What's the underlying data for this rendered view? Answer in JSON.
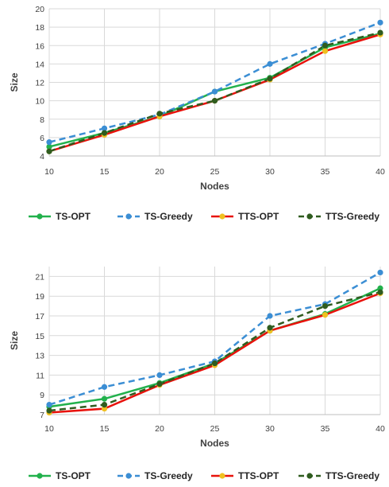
{
  "colors": {
    "ts_opt": "#22b14c",
    "ts_greedy": "#3b8ed4",
    "tts_opt": "#e8120c",
    "tts_greedy": "#2f5c1f",
    "tts_opt_marker": "#f0c020",
    "grid": "#d9d9d9",
    "axis": "#bfbfbf"
  },
  "chart_data": [
    {
      "type": "line",
      "title": "",
      "xlabel": "Nodes",
      "ylabel": "Size",
      "x": [
        10,
        15,
        20,
        25,
        30,
        35,
        40
      ],
      "xlim": [
        10,
        40
      ],
      "ylim": [
        4,
        20
      ],
      "yticks": [
        4,
        6,
        8,
        10,
        12,
        14,
        16,
        18,
        20
      ],
      "grid": "vertical and horizontal",
      "legend_position": "bottom",
      "series": [
        {
          "name": "TS-OPT",
          "style": "solid",
          "values": [
            5.0,
            6.5,
            8.3,
            11.0,
            12.5,
            15.8,
            17.3
          ]
        },
        {
          "name": "TS-Greedy",
          "style": "dashed",
          "values": [
            5.5,
            7.0,
            8.5,
            11.0,
            14.0,
            16.2,
            18.5
          ]
        },
        {
          "name": "TTS-OPT",
          "style": "solid",
          "values": [
            4.5,
            6.3,
            8.3,
            10.0,
            12.3,
            15.4,
            17.2
          ]
        },
        {
          "name": "TTS-Greedy",
          "style": "dashed",
          "values": [
            4.5,
            6.5,
            8.6,
            10.0,
            12.4,
            16.0,
            17.4
          ]
        }
      ]
    },
    {
      "type": "line",
      "title": "",
      "xlabel": "Nodes",
      "ylabel": "Size",
      "x": [
        10,
        15,
        20,
        25,
        30,
        35,
        40
      ],
      "xlim": [
        10,
        40
      ],
      "ylim": [
        7,
        22
      ],
      "yticks": [
        7,
        9,
        11,
        13,
        15,
        17,
        19,
        21
      ],
      "grid": "vertical and horizontal",
      "legend_position": "bottom",
      "series": [
        {
          "name": "TS-OPT",
          "style": "solid",
          "values": [
            7.8,
            8.6,
            10.2,
            12.2,
            15.5,
            17.2,
            19.8
          ]
        },
        {
          "name": "TS-Greedy",
          "style": "dashed",
          "values": [
            8.0,
            9.8,
            11.0,
            12.4,
            17.0,
            18.2,
            21.4
          ]
        },
        {
          "name": "TTS-OPT",
          "style": "solid",
          "values": [
            7.2,
            7.6,
            10.0,
            12.0,
            15.5,
            17.1,
            19.3
          ]
        },
        {
          "name": "TTS-Greedy",
          "style": "dashed",
          "values": [
            7.4,
            8.0,
            10.1,
            12.2,
            15.8,
            18.0,
            19.4
          ]
        }
      ]
    }
  ]
}
